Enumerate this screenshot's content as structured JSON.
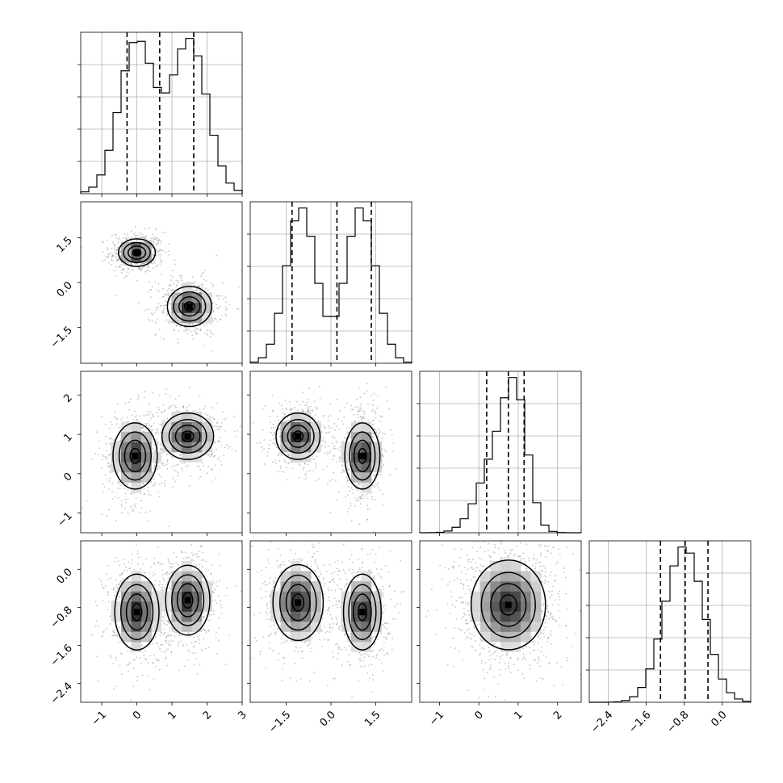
{
  "chart_data": {
    "type": "corner",
    "title": "",
    "quantile_lines": "dashed",
    "grid": true,
    "parameters": [
      {
        "index": 0,
        "range": [
          -1.6,
          3.0
        ],
        "ticks": [
          -1,
          0,
          1,
          2,
          3
        ],
        "tick_labels": [
          "−1",
          "0",
          "1",
          "2",
          "3"
        ],
        "quantiles": [
          -0.28,
          0.65,
          1.62
        ],
        "modes": [
          {
            "mean": 0.0,
            "sd": 0.5,
            "weight": 0.5
          },
          {
            "mean": 1.5,
            "sd": 0.5,
            "weight": 0.5
          }
        ]
      },
      {
        "index": 1,
        "range": [
          -2.7,
          2.7
        ],
        "ticks": [
          -1.5,
          0.0,
          1.5
        ],
        "tick_labels": [
          "−1.5",
          "0.0",
          "1.5"
        ],
        "quantiles": [
          -1.3,
          0.2,
          1.35
        ],
        "modes": [
          {
            "mean": 1.0,
            "sd": 0.5,
            "weight": 0.5
          },
          {
            "mean": -1.0,
            "sd": 0.5,
            "weight": 0.5
          }
        ]
      },
      {
        "index": 2,
        "range": [
          -1.5,
          2.6
        ],
        "ticks": [
          -1,
          0,
          1,
          2
        ],
        "tick_labels": [
          "−1",
          "0",
          "1",
          "2"
        ],
        "quantiles": [
          0.2,
          0.75,
          1.15
        ],
        "modes": [
          {
            "mean": 0.45,
            "sd": 0.45,
            "weight": 0.5
          },
          {
            "mean": 0.95,
            "sd": 0.3,
            "weight": 0.5
          }
        ]
      },
      {
        "index": 3,
        "range": [
          -2.8,
          0.6
        ],
        "ticks": [
          -2.4,
          -1.6,
          -0.8,
          0.0
        ],
        "tick_labels": [
          "−2.4",
          "−1.6",
          "−0.8",
          "0.0"
        ],
        "quantiles": [
          -1.3,
          -0.78,
          -0.3
        ],
        "modes": [
          {
            "mean": -0.9,
            "sd": 0.4,
            "weight": 0.5
          },
          {
            "mean": -0.7,
            "sd": 0.4,
            "weight": 0.5
          }
        ]
      }
    ],
    "histogram_bins": 20,
    "pairs": [
      {
        "row": 1,
        "col": 0,
        "clusters": [
          [
            0.0,
            1.0,
            0.25,
            0.22
          ],
          [
            1.5,
            -0.8,
            0.3,
            0.32
          ]
        ]
      },
      {
        "row": 2,
        "col": 0,
        "clusters": [
          [
            -0.05,
            0.45,
            0.3,
            0.4
          ],
          [
            1.45,
            0.95,
            0.35,
            0.28
          ]
        ]
      },
      {
        "row": 2,
        "col": 1,
        "clusters": [
          [
            -1.1,
            0.95,
            0.35,
            0.28
          ],
          [
            1.05,
            0.45,
            0.28,
            0.4
          ]
        ]
      },
      {
        "row": 3,
        "col": 0,
        "clusters": [
          [
            0.0,
            -0.9,
            0.3,
            0.38
          ],
          [
            1.45,
            -0.65,
            0.3,
            0.35
          ]
        ]
      },
      {
        "row": 3,
        "col": 1,
        "clusters": [
          [
            -1.1,
            -0.7,
            0.4,
            0.38
          ],
          [
            1.05,
            -0.9,
            0.3,
            0.38
          ]
        ]
      },
      {
        "row": 3,
        "col": 2,
        "clusters": [
          [
            0.75,
            -0.75,
            0.45,
            0.45
          ]
        ]
      }
    ]
  }
}
